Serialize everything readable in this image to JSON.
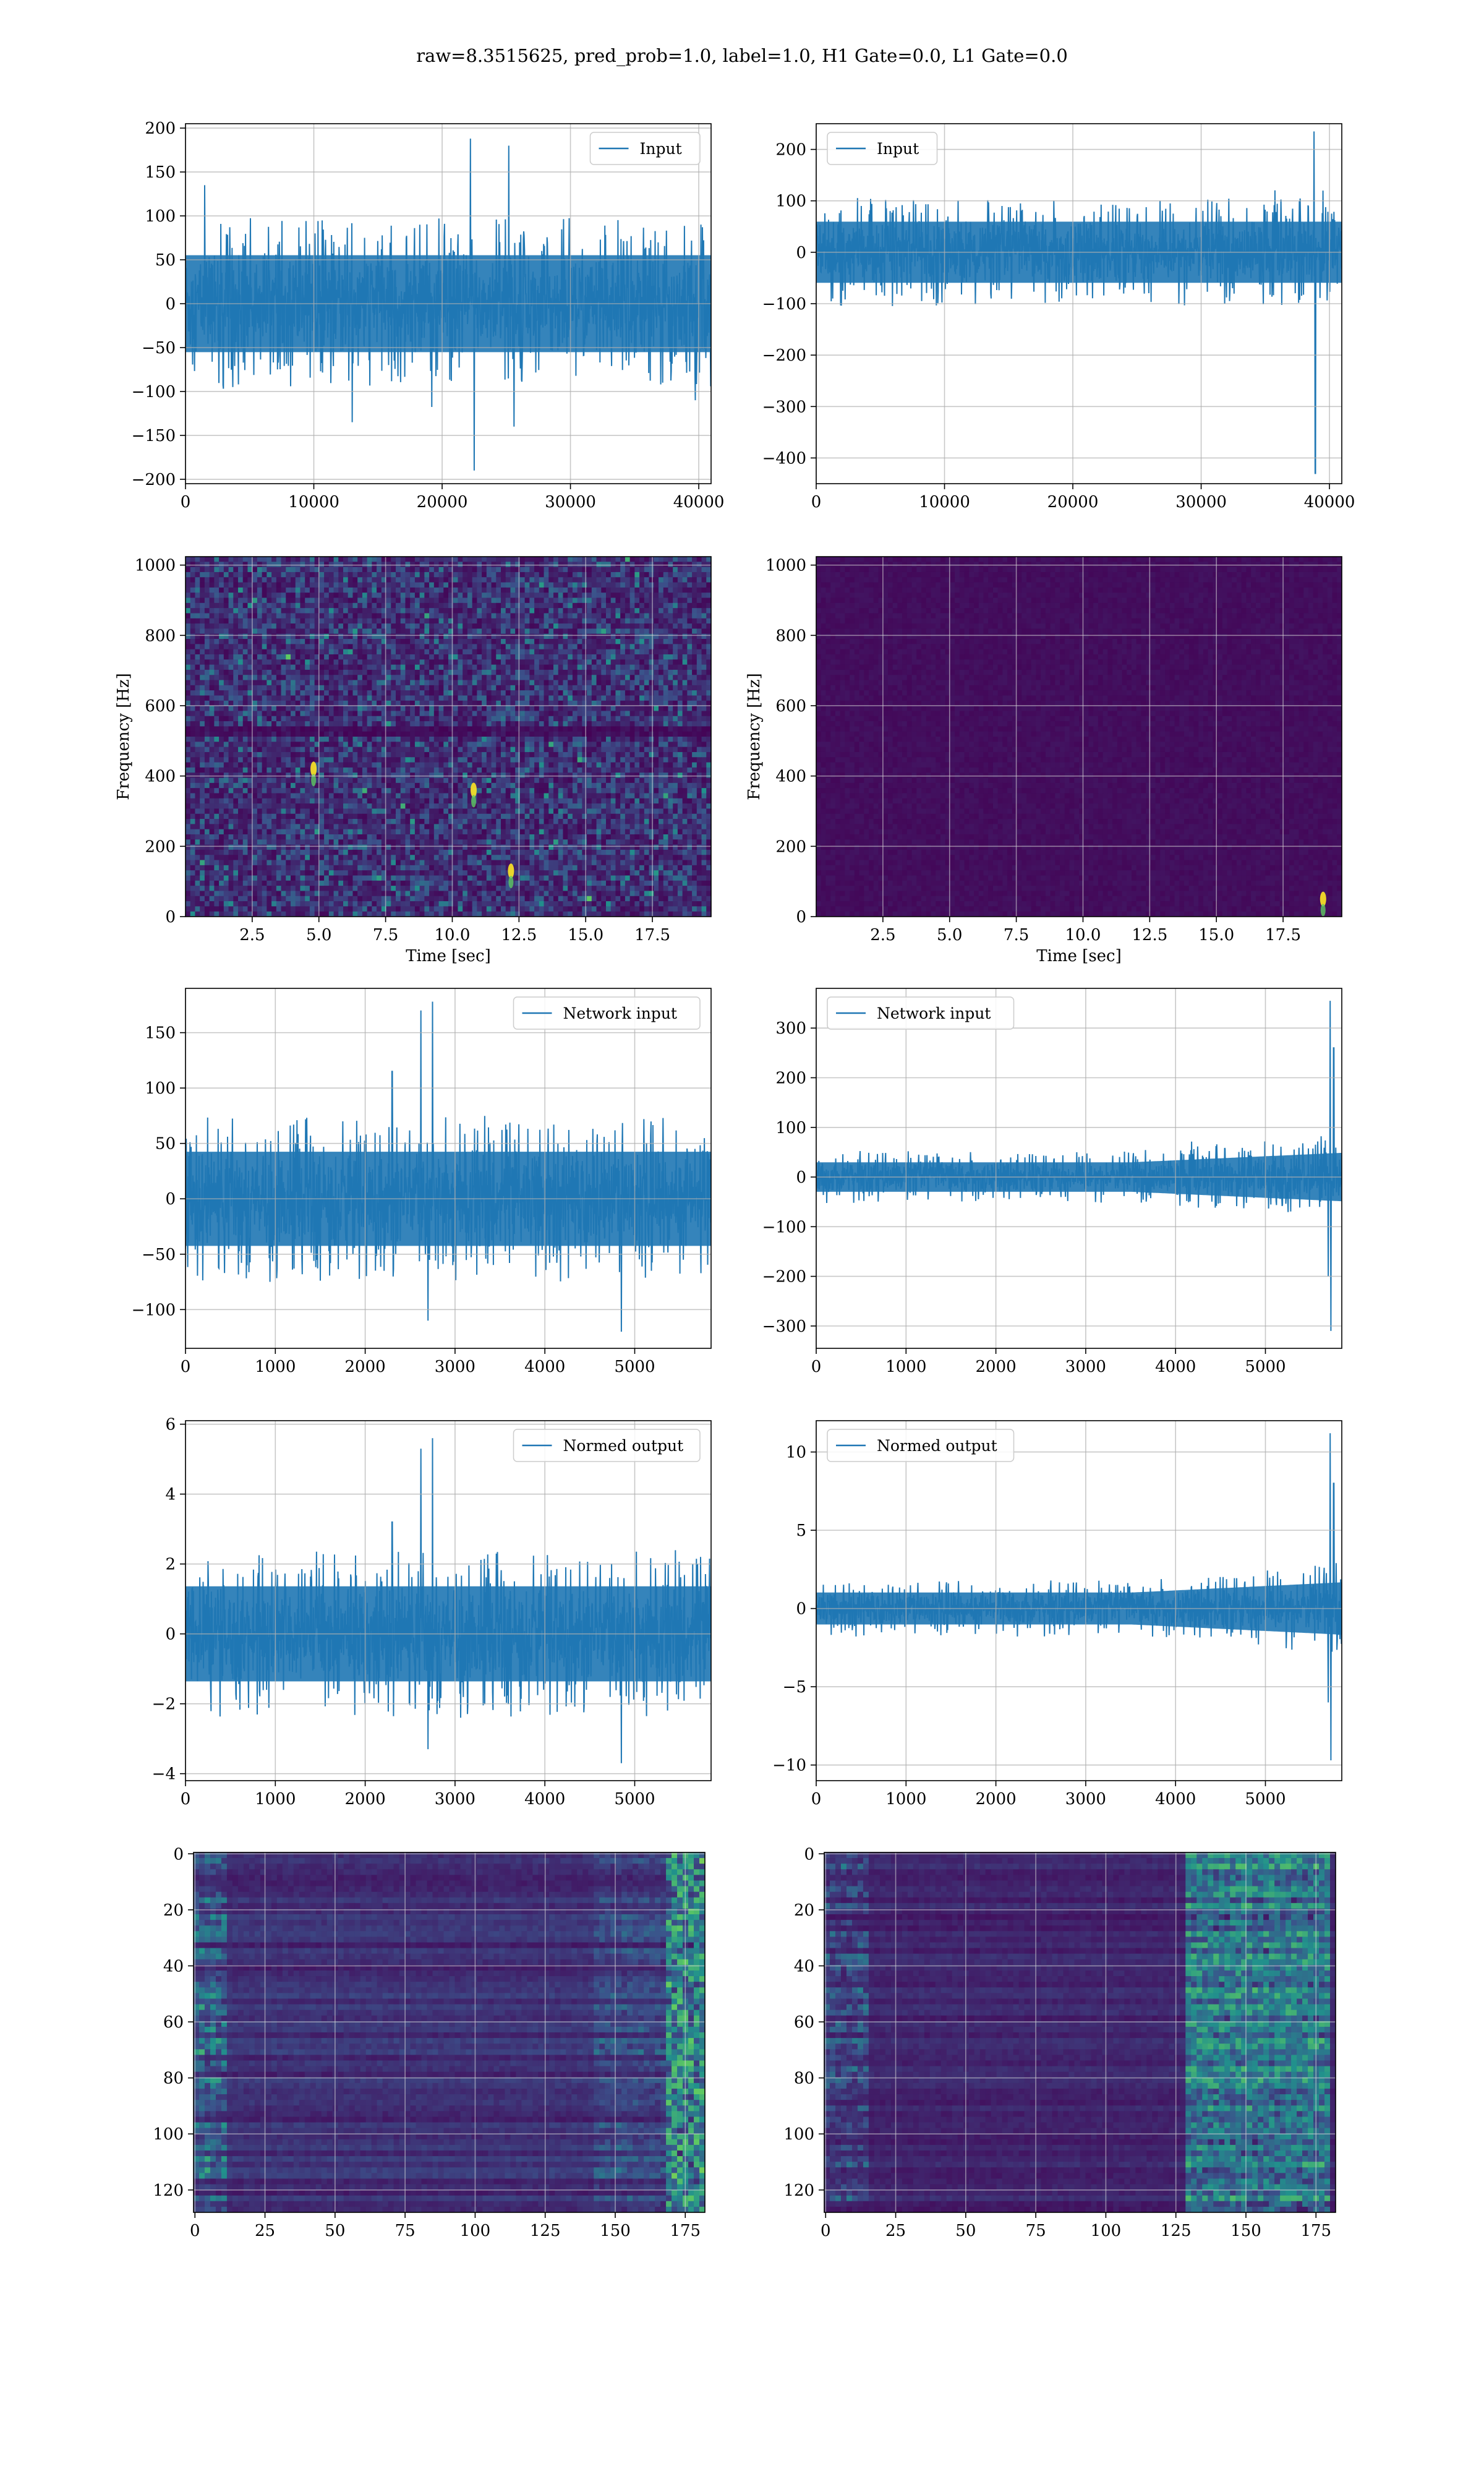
{
  "figure": {
    "suptitle": "raw=8.3515625, pred_prob=1.0, label=1.0, H1 Gate=0.0, L1 Gate=0.0"
  },
  "colors": {
    "line": "#1f77b4",
    "grid": "#b0b0b0",
    "viridis_dark": "#440154",
    "viridis_yellow": "#fde725"
  },
  "chart_data": [
    {
      "id": "input_h1",
      "type": "line",
      "legend": "Input",
      "legend_position": "upper right",
      "x_range": [
        0,
        40960
      ],
      "ylim": [
        -205,
        205
      ],
      "xticks": [
        0,
        10000,
        20000,
        30000,
        40000
      ],
      "xtick_labels": [
        "0",
        "10000",
        "20000",
        "30000",
        "40000"
      ],
      "yticks": [
        -200,
        -150,
        -100,
        -50,
        0,
        50,
        100,
        150,
        200
      ],
      "ytick_labels": [
        "−200",
        "−150",
        "−100",
        "−50",
        "0",
        "50",
        "100",
        "150",
        "200"
      ],
      "xlabel": "",
      "ylabel": "",
      "grid": true,
      "noise_envelope": 65,
      "spikes": [
        [
          1500,
          135
        ],
        [
          13000,
          -135
        ],
        [
          22200,
          188
        ],
        [
          22500,
          -190
        ],
        [
          25200,
          180
        ],
        [
          25600,
          -140
        ]
      ]
    },
    {
      "id": "input_l1",
      "type": "line",
      "legend": "Input",
      "legend_position": "upper left",
      "x_range": [
        0,
        40960
      ],
      "ylim": [
        -450,
        250
      ],
      "xticks": [
        0,
        10000,
        20000,
        30000,
        40000
      ],
      "xtick_labels": [
        "0",
        "10000",
        "20000",
        "30000",
        "40000"
      ],
      "yticks": [
        -400,
        -300,
        -200,
        -100,
        0,
        100,
        200
      ],
      "ytick_labels": [
        "−400",
        "−300",
        "−200",
        "−100",
        "0",
        "100",
        "200"
      ],
      "xlabel": "",
      "ylabel": "",
      "grid": true,
      "noise_envelope": 70,
      "spikes": [
        [
          38800,
          235
        ],
        [
          38900,
          -430
        ],
        [
          39500,
          120
        ]
      ]
    },
    {
      "id": "spec_h1",
      "type": "heatmap",
      "colormap": "viridis",
      "x_range": [
        0,
        19.7
      ],
      "ylim": [
        0,
        1024
      ],
      "xticks": [
        2.5,
        5.0,
        7.5,
        10.0,
        12.5,
        15.0,
        17.5
      ],
      "xtick_labels": [
        "2.5",
        "5.0",
        "7.5",
        "10.0",
        "12.5",
        "15.0",
        "17.5"
      ],
      "yticks": [
        0,
        200,
        400,
        600,
        800,
        1000
      ],
      "ytick_labels": [
        "0",
        "200",
        "400",
        "600",
        "800",
        "1000"
      ],
      "xlabel": "Time [sec]",
      "ylabel": "Frequency [Hz]",
      "grid": true,
      "brightness": "noisy",
      "hot_spots": [
        [
          10.8,
          360
        ],
        [
          12.2,
          130
        ],
        [
          4.8,
          420
        ]
      ]
    },
    {
      "id": "spec_l1",
      "type": "heatmap",
      "colormap": "viridis",
      "x_range": [
        0,
        19.7
      ],
      "ylim": [
        0,
        1024
      ],
      "xticks": [
        2.5,
        5.0,
        7.5,
        10.0,
        12.5,
        15.0,
        17.5
      ],
      "xtick_labels": [
        "2.5",
        "5.0",
        "7.5",
        "10.0",
        "12.5",
        "15.0",
        "17.5"
      ],
      "yticks": [
        0,
        200,
        400,
        600,
        800,
        1000
      ],
      "ytick_labels": [
        "0",
        "200",
        "400",
        "600",
        "800",
        "1000"
      ],
      "xlabel": "Time [sec]",
      "ylabel": "Frequency [Hz]",
      "grid": true,
      "brightness": "dark",
      "hot_spots": [
        [
          19.0,
          50
        ]
      ]
    },
    {
      "id": "net_h1",
      "type": "line",
      "legend": "Network input",
      "legend_position": "upper right",
      "x_range": [
        0,
        5850
      ],
      "ylim": [
        -135,
        190
      ],
      "xticks": [
        0,
        1000,
        2000,
        3000,
        4000,
        5000,
        6000
      ],
      "xtick_labels": [
        "0",
        "1000",
        "2000",
        "3000",
        "4000",
        "5000",
        "6000"
      ],
      "yticks": [
        -100,
        -50,
        0,
        50,
        100,
        150
      ],
      "ytick_labels": [
        "−100",
        "−50",
        "0",
        "50",
        "100",
        "150"
      ],
      "xlabel": "",
      "ylabel": "",
      "grid": true,
      "noise_envelope": 50,
      "spikes": [
        [
          2620,
          170
        ],
        [
          2750,
          178
        ],
        [
          2700,
          -110
        ],
        [
          4850,
          -120
        ],
        [
          2300,
          115
        ]
      ]
    },
    {
      "id": "net_l1",
      "type": "line",
      "legend": "Network input",
      "legend_position": "upper left",
      "x_range": [
        0,
        5850
      ],
      "ylim": [
        -345,
        380
      ],
      "xticks": [
        0,
        1000,
        2000,
        3000,
        4000,
        5000,
        6000
      ],
      "xtick_labels": [
        "0",
        "1000",
        "2000",
        "3000",
        "4000",
        "5000",
        "6000"
      ],
      "yticks": [
        -300,
        -200,
        -100,
        0,
        100,
        200,
        300
      ],
      "ytick_labels": [
        "−300",
        "−200",
        "−100",
        "0",
        "100",
        "200",
        "300"
      ],
      "xlabel": "",
      "ylabel": "",
      "grid": true,
      "noise_envelope": 35,
      "growth": 1.6,
      "spikes": [
        [
          5720,
          355
        ],
        [
          5730,
          -310
        ],
        [
          5760,
          260
        ],
        [
          5700,
          -200
        ]
      ]
    },
    {
      "id": "norm_h1",
      "type": "line",
      "legend": "Normed output",
      "legend_position": "upper right",
      "x_range": [
        0,
        5850
      ],
      "ylim": [
        -4.2,
        6.1
      ],
      "xticks": [
        0,
        1000,
        2000,
        3000,
        4000,
        5000,
        6000
      ],
      "xtick_labels": [
        "0",
        "1000",
        "2000",
        "3000",
        "4000",
        "5000",
        "6000"
      ],
      "yticks": [
        -4,
        -2,
        0,
        2,
        4,
        6
      ],
      "ytick_labels": [
        "−4",
        "−2",
        "0",
        "2",
        "4",
        "6"
      ],
      "xlabel": "",
      "ylabel": "",
      "grid": true,
      "noise_envelope": 1.6,
      "spikes": [
        [
          2620,
          5.3
        ],
        [
          2750,
          5.6
        ],
        [
          2700,
          -3.3
        ],
        [
          4850,
          -3.7
        ],
        [
          2300,
          3.2
        ]
      ]
    },
    {
      "id": "norm_l1",
      "type": "line",
      "legend": "Normed output",
      "legend_position": "upper left",
      "x_range": [
        0,
        5850
      ],
      "ylim": [
        -11,
        12
      ],
      "xticks": [
        0,
        1000,
        2000,
        3000,
        4000,
        5000,
        6000
      ],
      "xtick_labels": [
        "0",
        "1000",
        "2000",
        "3000",
        "4000",
        "5000",
        "6000"
      ],
      "yticks": [
        -10,
        -5,
        0,
        5,
        10
      ],
      "ytick_labels": [
        "−10",
        "−5",
        "0",
        "5",
        "10"
      ],
      "xlabel": "",
      "ylabel": "",
      "grid": true,
      "noise_envelope": 1.2,
      "growth": 1.6,
      "spikes": [
        [
          5720,
          11.2
        ],
        [
          5730,
          -9.7
        ],
        [
          5760,
          8.0
        ],
        [
          5700,
          -6.0
        ]
      ]
    },
    {
      "id": "feat_h1",
      "type": "heatmap",
      "colormap": "viridis",
      "x_range": [
        -0.5,
        182
      ],
      "ylim": [
        128,
        -0.5
      ],
      "xticks": [
        0,
        25,
        50,
        75,
        100,
        125,
        150,
        175
      ],
      "xtick_labels": [
        "0",
        "25",
        "50",
        "75",
        "100",
        "125",
        "150",
        "175"
      ],
      "yticks": [
        0,
        20,
        40,
        60,
        80,
        100,
        120
      ],
      "ytick_labels": [
        "0",
        "20",
        "40",
        "60",
        "80",
        "100",
        "120"
      ],
      "xlabel": "",
      "ylabel": "",
      "grid": true,
      "brightness": "features_right_edge"
    },
    {
      "id": "feat_l1",
      "type": "heatmap",
      "colormap": "viridis",
      "x_range": [
        -0.5,
        182
      ],
      "ylim": [
        128,
        -0.5
      ],
      "xticks": [
        0,
        25,
        50,
        75,
        100,
        125,
        150,
        175
      ],
      "xtick_labels": [
        "0",
        "25",
        "50",
        "75",
        "100",
        "125",
        "150",
        "175"
      ],
      "yticks": [
        0,
        20,
        40,
        60,
        80,
        100,
        120
      ],
      "ytick_labels": [
        "0",
        "20",
        "40",
        "60",
        "80",
        "100",
        "120"
      ],
      "xlabel": "",
      "ylabel": "",
      "grid": true,
      "brightness": "features_band_150_175"
    }
  ]
}
